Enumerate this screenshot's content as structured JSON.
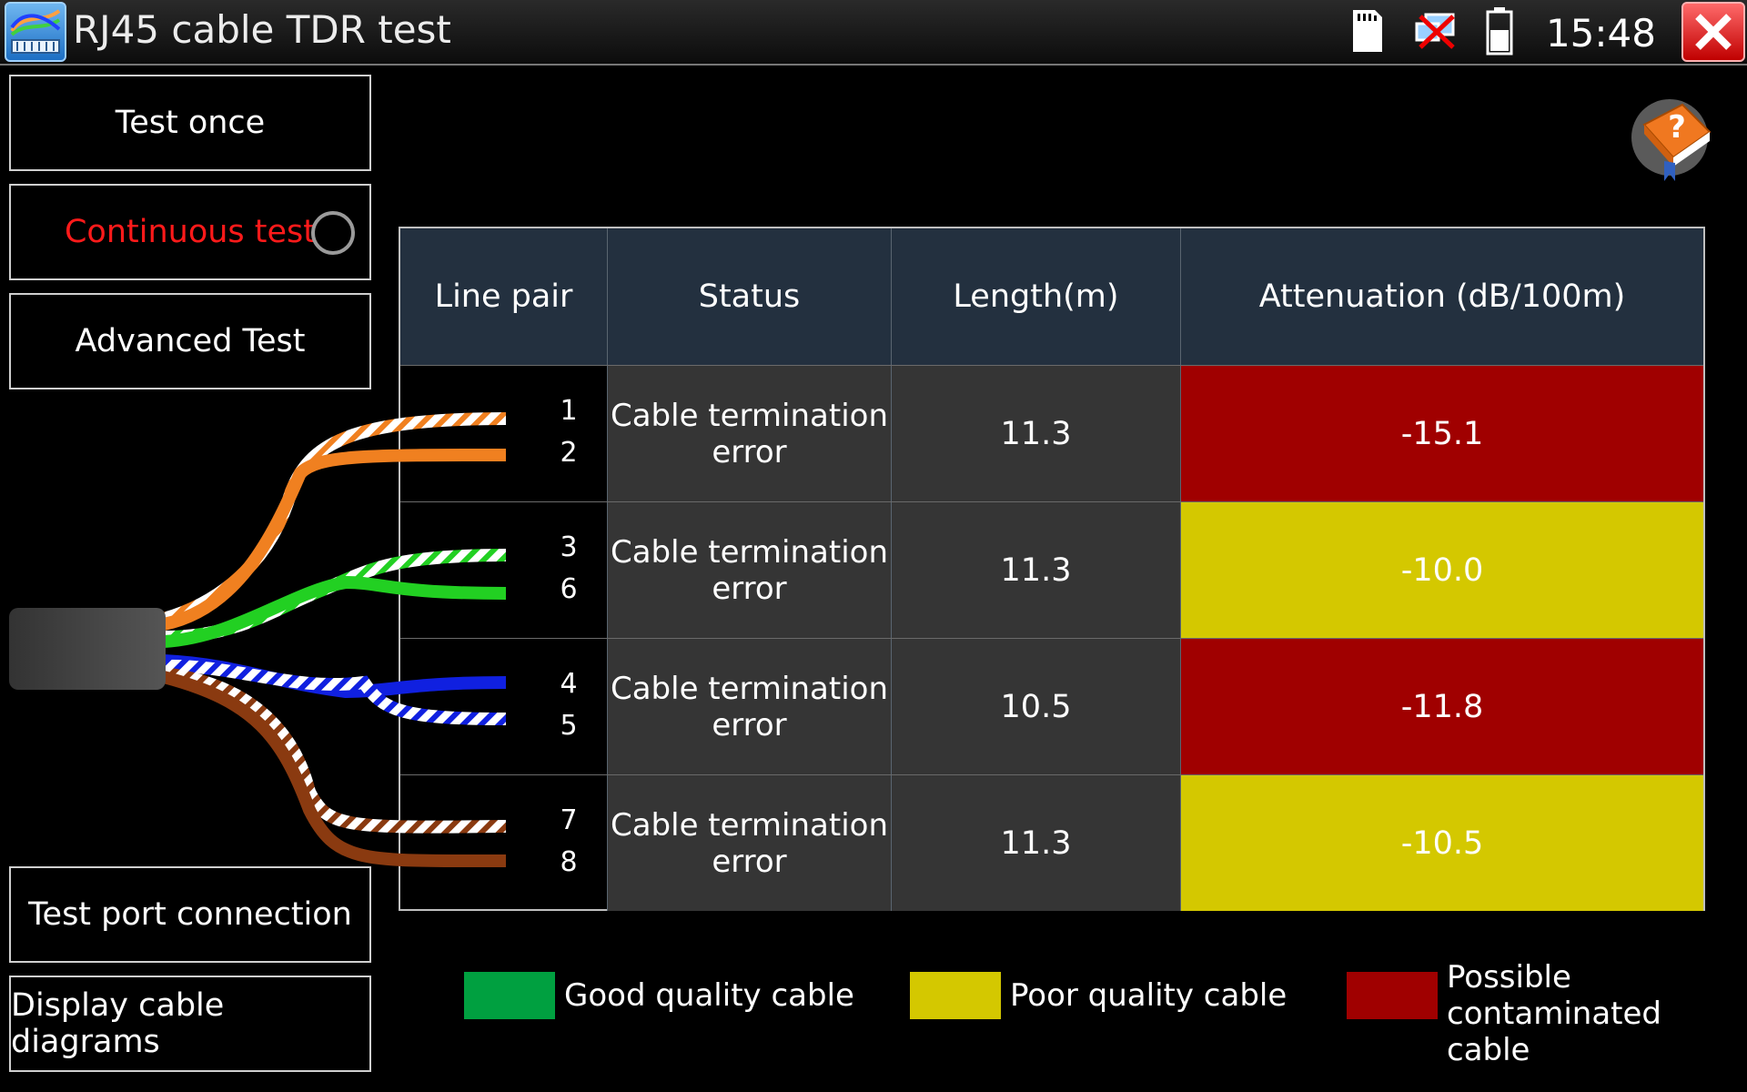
{
  "app": {
    "title": "RJ45 cable TDR test",
    "time": "15:48"
  },
  "status_icons": [
    "sd-card-icon",
    "network-disconnected-icon",
    "battery-icon"
  ],
  "sidebar": {
    "test_once": "Test once",
    "continuous_test": "Continuous test",
    "advanced_test": "Advanced Test",
    "test_port_connection": "Test port connection",
    "display_cable_diagrams": "Display cable diagrams"
  },
  "table": {
    "headers": [
      "Line pair",
      "Status",
      "Length(m)",
      "Attenuation (dB/100m)"
    ],
    "rows": [
      {
        "pair_a": "1",
        "pair_b": "2",
        "status": "Cable termination error",
        "length": "11.3",
        "attenuation": "-15.1",
        "color": "#a00000"
      },
      {
        "pair_a": "3",
        "pair_b": "6",
        "status": "Cable termination error",
        "length": "11.3",
        "attenuation": "-10.0",
        "color": "#d4c800"
      },
      {
        "pair_a": "4",
        "pair_b": "5",
        "status": "Cable termination error",
        "length": "10.5",
        "attenuation": "-11.8",
        "color": "#a00000"
      },
      {
        "pair_a": "7",
        "pair_b": "8",
        "status": "Cable termination error",
        "length": "11.3",
        "attenuation": "-10.5",
        "color": "#d4c800"
      }
    ]
  },
  "legend": [
    {
      "label": "Good quality cable",
      "color": "#00a040"
    },
    {
      "label": "Poor quality cable",
      "color": "#d4c800"
    },
    {
      "label": "Possible contaminated cable",
      "color": "#a00000"
    }
  ],
  "colors": {
    "title_bar": "#1a1a1a",
    "table_header": "#23303f",
    "cell_bg": "#353535",
    "continuous_label": "#ff1a1a"
  }
}
